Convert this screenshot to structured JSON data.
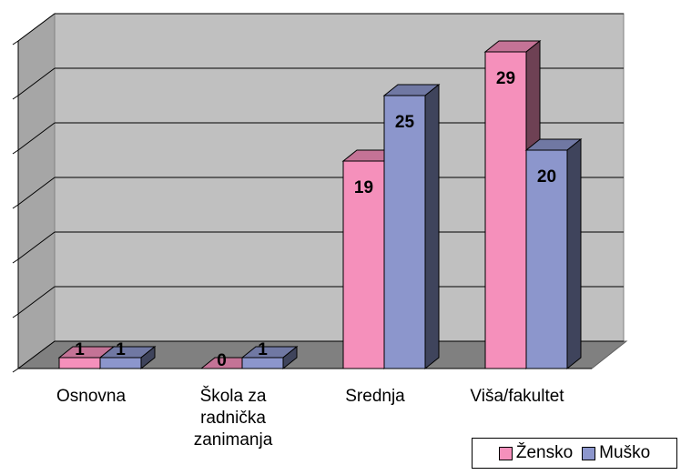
{
  "chart_data": {
    "type": "bar3d",
    "categories": [
      "Osnovna",
      "Škola za\nradnička\nzanimanja",
      "Srednja",
      "Viša/fakultet"
    ],
    "series": [
      {
        "name": "Žensko",
        "color": "#f590bb",
        "values": [
          1,
          0,
          19,
          29
        ]
      },
      {
        "name": "Muško",
        "color": "#8c96cc",
        "values": [
          1,
          1,
          25,
          20
        ]
      }
    ],
    "ylim": [
      0,
      30
    ],
    "yticks": [
      0,
      5,
      10,
      15,
      20,
      25,
      30
    ],
    "grid": true,
    "legend": "bottom-right"
  }
}
